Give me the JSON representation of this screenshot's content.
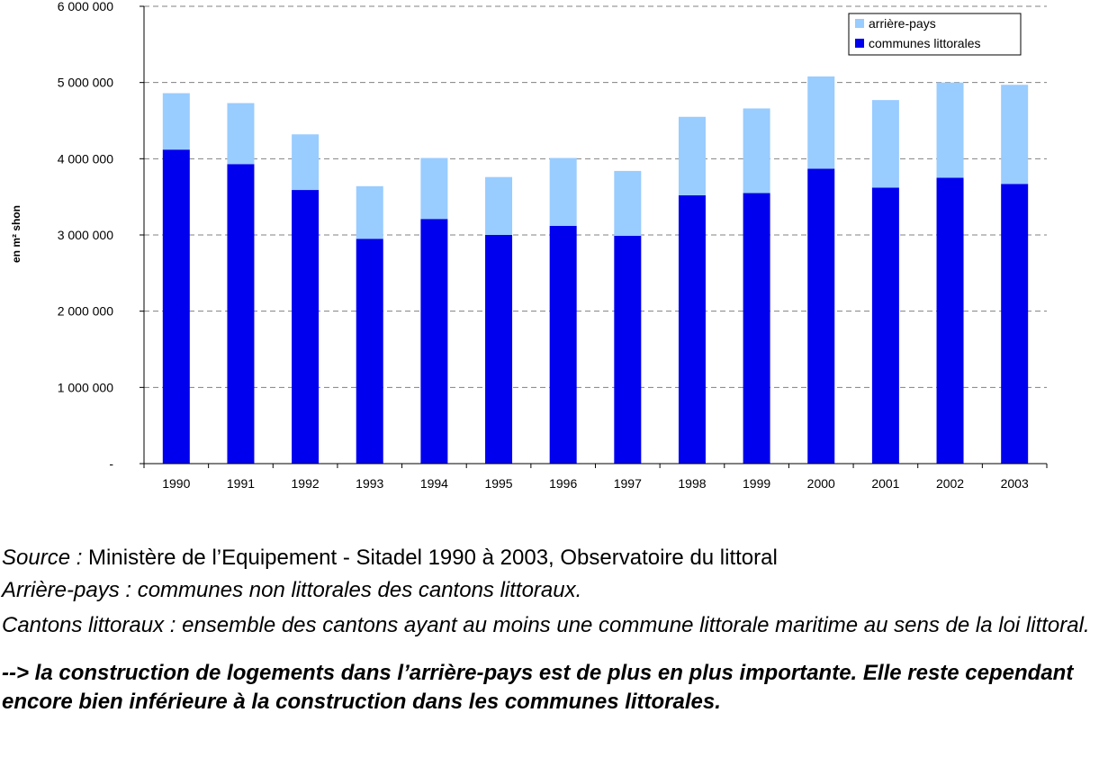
{
  "chart_data": {
    "type": "bar",
    "stacked": true,
    "ylabel": "en m² shon",
    "ylim": [
      0,
      6000000
    ],
    "yticks": [
      0,
      1000000,
      2000000,
      3000000,
      4000000,
      5000000,
      6000000
    ],
    "ytick_labels": [
      "-",
      "1 000 000",
      "2 000 000",
      "3 000 000",
      "4 000 000",
      "5 000 000",
      "6 000 000"
    ],
    "grid": true,
    "legend_position": "top-right",
    "categories": [
      "1990",
      "1991",
      "1992",
      "1993",
      "1994",
      "1995",
      "1996",
      "1997",
      "1998",
      "1999",
      "2000",
      "2001",
      "2002",
      "2003"
    ],
    "series": [
      {
        "name": "communes littorales",
        "color": "#0000ee",
        "values": [
          4120000,
          3930000,
          3590000,
          2950000,
          3210000,
          3000000,
          3120000,
          2990000,
          3520000,
          3550000,
          3870000,
          3620000,
          3750000,
          3670000
        ]
      },
      {
        "name": "arrière-pays",
        "color": "#99ccff",
        "values": [
          740000,
          800000,
          730000,
          690000,
          800000,
          760000,
          890000,
          850000,
          1030000,
          1110000,
          1210000,
          1150000,
          1250000,
          1300000
        ]
      }
    ],
    "legend_order": [
      "arrière-pays",
      "communes littorales"
    ]
  },
  "notes": {
    "source_label": "Source :",
    "source_text": " Ministère de l’Equipement - Sitadel 1990 à 2003, Observatoire du littoral",
    "arriere_pays_def": "Arrière-pays : communes non littorales des cantons littoraux.",
    "cantons_def": "Cantons littoraux : ensemble des cantons ayant au moins une commune littorale maritime au sens de la loi littoral.",
    "conclusion": "--> la construction de logements dans l’arrière-pays est de plus en plus importante. Elle reste cependant encore bien inférieure à la construction dans les communes littorales."
  }
}
